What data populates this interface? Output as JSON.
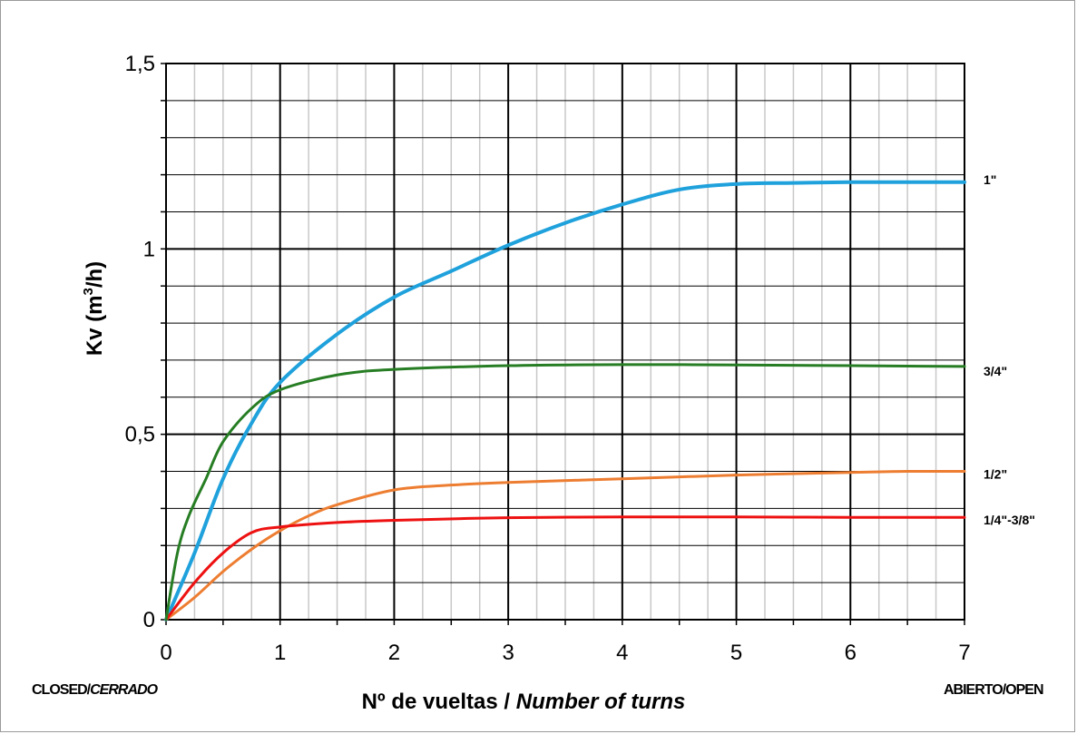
{
  "chart_data": {
    "type": "line",
    "xlabel": "Nº de vueltas / ",
    "xlabel_italic": "Number of turns",
    "ylabel_main": "Kv  (m",
    "ylabel_sup": "3",
    "ylabel_tail": "/h)",
    "xlim": [
      0,
      7
    ],
    "ylim": [
      0,
      1.5
    ],
    "x_ticks": [
      {
        "v": 0,
        "label": "0"
      },
      {
        "v": 1,
        "label": "1"
      },
      {
        "v": 2,
        "label": "2"
      },
      {
        "v": 3,
        "label": "3"
      },
      {
        "v": 4,
        "label": "4"
      },
      {
        "v": 5,
        "label": "5"
      },
      {
        "v": 6,
        "label": "6"
      },
      {
        "v": 7,
        "label": "7"
      }
    ],
    "y_ticks": [
      {
        "v": 0,
        "label": "0"
      },
      {
        "v": 0.5,
        "label": "0,5"
      },
      {
        "v": 1,
        "label": "1"
      },
      {
        "v": 1.5,
        "label": "1,5"
      }
    ],
    "grid": true,
    "series": [
      {
        "name": "1\"",
        "color": "#1fa1dc",
        "points": [
          [
            0,
            0
          ],
          [
            0.25,
            0.18
          ],
          [
            0.5,
            0.38
          ],
          [
            0.75,
            0.53
          ],
          [
            1,
            0.64
          ],
          [
            1.5,
            0.77
          ],
          [
            2,
            0.87
          ],
          [
            2.5,
            0.94
          ],
          [
            3,
            1.01
          ],
          [
            3.5,
            1.07
          ],
          [
            4,
            1.12
          ],
          [
            4.5,
            1.16
          ],
          [
            5,
            1.175
          ],
          [
            5.5,
            1.178
          ],
          [
            6,
            1.18
          ],
          [
            6.5,
            1.18
          ],
          [
            7,
            1.18
          ]
        ]
      },
      {
        "name": "3/4\"",
        "color": "#267d23",
        "points": [
          [
            0,
            0
          ],
          [
            0.1,
            0.18
          ],
          [
            0.2,
            0.28
          ],
          [
            0.35,
            0.38
          ],
          [
            0.5,
            0.48
          ],
          [
            0.75,
            0.57
          ],
          [
            1,
            0.62
          ],
          [
            1.5,
            0.66
          ],
          [
            2,
            0.675
          ],
          [
            3,
            0.685
          ],
          [
            4,
            0.688
          ],
          [
            5,
            0.687
          ],
          [
            6,
            0.685
          ],
          [
            7,
            0.683
          ]
        ]
      },
      {
        "name": "1/2\"",
        "color": "#ed7d31",
        "points": [
          [
            0,
            0
          ],
          [
            0.25,
            0.06
          ],
          [
            0.5,
            0.13
          ],
          [
            0.75,
            0.19
          ],
          [
            1,
            0.24
          ],
          [
            1.25,
            0.28
          ],
          [
            1.5,
            0.31
          ],
          [
            2,
            0.35
          ],
          [
            2.5,
            0.363
          ],
          [
            3,
            0.37
          ],
          [
            4,
            0.38
          ],
          [
            5,
            0.39
          ],
          [
            6,
            0.397
          ],
          [
            6.5,
            0.4
          ],
          [
            7,
            0.4
          ]
        ]
      },
      {
        "name": "1/4\"-3/8\"",
        "color": "#ee1111",
        "points": [
          [
            0,
            0
          ],
          [
            0.25,
            0.1
          ],
          [
            0.5,
            0.18
          ],
          [
            0.75,
            0.235
          ],
          [
            1,
            0.25
          ],
          [
            1.5,
            0.262
          ],
          [
            2,
            0.268
          ],
          [
            3,
            0.275
          ],
          [
            4,
            0.277
          ],
          [
            5,
            0.277
          ],
          [
            6,
            0.276
          ],
          [
            7,
            0.276
          ]
        ]
      }
    ]
  },
  "annotations": {
    "closed_main": "CLOSED/",
    "closed_italic": "CERRADO",
    "open": "ABIERTO/OPEN"
  }
}
